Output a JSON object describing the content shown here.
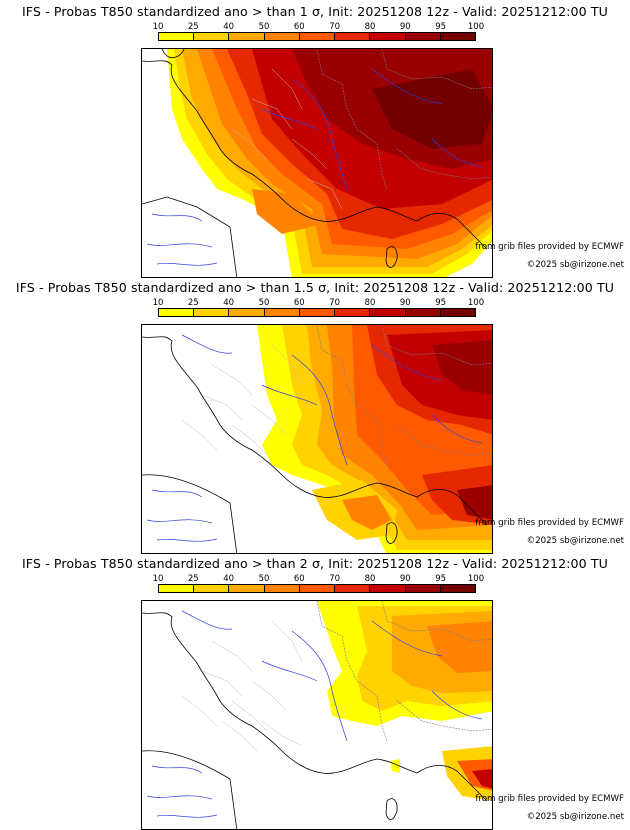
{
  "legend": {
    "ticks": [
      "10",
      "25",
      "40",
      "50",
      "60",
      "70",
      "80",
      "90",
      "95",
      "100"
    ],
    "colors": [
      "#ffff00",
      "#ffd200",
      "#ffaa00",
      "#ff8200",
      "#ff5a00",
      "#e62800",
      "#c30000",
      "#9b0000",
      "#730000"
    ]
  },
  "panels": [
    {
      "title": "IFS - Probas T850  standardized ano > than 1 σ, Init: 20251208 12z - Valid: 20251212:00 TU",
      "credit_grib": "from grib files provided by ECMWF",
      "credit_site": "©2025 sb@irizone.net"
    },
    {
      "title": "IFS - Probas T850  standardized ano > than 1.5 σ, Init: 20251208 12z - Valid: 20251212:00 TU",
      "credit_grib": "from grib files provided by ECMWF",
      "credit_site": "©2025 sb@irizone.net"
    },
    {
      "title": "IFS - Probas T850  standardized ano > than 2 σ, Init: 20251208 12z - Valid: 20251212:00 TU",
      "credit_grib": "from grib files provided by ECMWF",
      "credit_site": "©2025 sb@irizone.net"
    }
  ]
}
